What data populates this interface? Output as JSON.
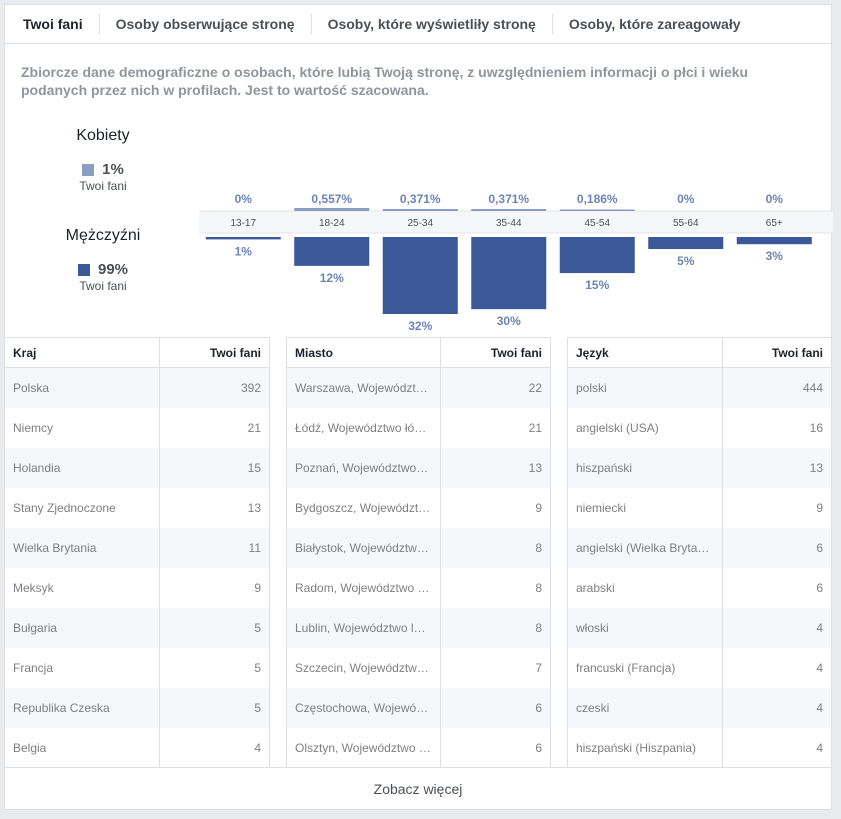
{
  "tabs": [
    "Twoi fani",
    "Osoby obserwujące stronę",
    "Osoby, które wyświetliły stronę",
    "Osoby, które zareagowały"
  ],
  "description": "Zbiorcze dane demograficzne o osobach, które lubią Twoją stronę, z uwzględnieniem informacji o płci i wieku podanych przez nich w profilach. Jest to wartość szacowana.",
  "women": {
    "label": "Kobiety",
    "pct": "1%",
    "sub": "Twoi fani",
    "color": "#8b9dc3"
  },
  "men": {
    "label": "Mężczyźni",
    "pct": "99%",
    "sub": "Twoi fani",
    "color": "#3b5998"
  },
  "chart_data": {
    "type": "bar",
    "categories": [
      "13-17",
      "18-24",
      "25-34",
      "35-44",
      "45-54",
      "55-64",
      "65+"
    ],
    "series": [
      {
        "name": "Kobiety",
        "values": [
          0,
          0.557,
          0.371,
          0.371,
          0.186,
          0,
          0
        ],
        "labels": [
          "0%",
          "0,557%",
          "0,371%",
          "0,371%",
          "0,186%",
          "0%",
          "0%"
        ],
        "color": "#8b9dc3"
      },
      {
        "name": "Mężczyźni",
        "values": [
          1,
          12,
          32,
          30,
          15,
          5,
          3
        ],
        "labels": [
          "1%",
          "12%",
          "32%",
          "30%",
          "15%",
          "5%",
          "3%"
        ],
        "color": "#3b5998"
      }
    ]
  },
  "tables": {
    "countries": {
      "header": [
        "Kraj",
        "Twoi fani"
      ],
      "rows": [
        [
          "Polska",
          "392"
        ],
        [
          "Niemcy",
          "21"
        ],
        [
          "Holandia",
          "15"
        ],
        [
          "Stany Zjednoczone",
          "13"
        ],
        [
          "Wielka Brytania",
          "11"
        ],
        [
          "Meksyk",
          "9"
        ],
        [
          "Bułgaria",
          "5"
        ],
        [
          "Francja",
          "5"
        ],
        [
          "Republika Czeska",
          "5"
        ],
        [
          "Belgia",
          "4"
        ]
      ]
    },
    "cities": {
      "header": [
        "Miasto",
        "Twoi fani"
      ],
      "rows": [
        [
          "Warszawa, Województwo mazowieckie",
          "22"
        ],
        [
          "Łódź, Województwo łódzkie",
          "21"
        ],
        [
          "Poznań, Województwo wielkopolskie",
          "13"
        ],
        [
          "Bydgoszcz, Województwo kujawsko-pomorskie",
          "9"
        ],
        [
          "Białystok, Województwo podlaskie",
          "8"
        ],
        [
          "Radom, Województwo mazowieckie",
          "8"
        ],
        [
          "Lublin, Województwo lubelskie",
          "8"
        ],
        [
          "Szczecin, Województwo zachodniopomorskie",
          "7"
        ],
        [
          "Częstochowa, Województwo śląskie",
          "6"
        ],
        [
          "Olsztyn, Województwo warmińsko-mazurskie",
          "6"
        ]
      ]
    },
    "languages": {
      "header": [
        "Język",
        "Twoi fani"
      ],
      "rows": [
        [
          "polski",
          "444"
        ],
        [
          "angielski (USA)",
          "16"
        ],
        [
          "hiszpański",
          "13"
        ],
        [
          "niemiecki",
          "9"
        ],
        [
          "angielski (Wielka Brytania)",
          "6"
        ],
        [
          "arabski",
          "6"
        ],
        [
          "włoski",
          "4"
        ],
        [
          "francuski (Francja)",
          "4"
        ],
        [
          "czeski",
          "4"
        ],
        [
          "hiszpański (Hiszpania)",
          "4"
        ]
      ]
    }
  },
  "see_more": "Zobacz więcej"
}
